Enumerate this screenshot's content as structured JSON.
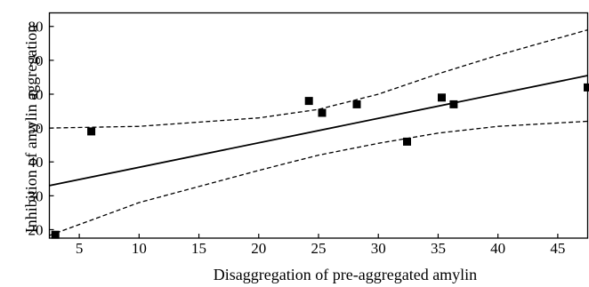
{
  "chart_data": {
    "type": "scatter",
    "title": "",
    "xlabel": "Disaggregation of pre-aggregated amylin",
    "ylabel": "Inhibition of amylin aggregation",
    "xlim": [
      2.5,
      47.5
    ],
    "ylim": [
      17.5,
      84
    ],
    "xticks": [
      5,
      10,
      15,
      20,
      25,
      30,
      35,
      40,
      45
    ],
    "yticks": [
      20,
      30,
      40,
      50,
      60,
      70,
      80
    ],
    "grid": false,
    "legend": "none",
    "series": [
      {
        "marker": "square",
        "x": [
          3,
          6,
          24.2,
          25.3,
          28.2,
          32.4,
          35.3,
          36.3,
          47.5
        ],
        "y": [
          18.5,
          49,
          58,
          54.5,
          57,
          46,
          59,
          57,
          62
        ]
      }
    ],
    "regression_line": {
      "x": [
        2.5,
        47.5
      ],
      "y": [
        33,
        65.5
      ]
    },
    "confidence_band": {
      "upper": {
        "x": [
          2.5,
          10,
          20,
          25,
          30,
          35,
          40,
          47.5
        ],
        "y": [
          50,
          50.5,
          53,
          55.5,
          60,
          66,
          71.5,
          79
        ]
      },
      "lower": {
        "x": [
          2.5,
          10,
          20,
          25,
          30,
          35,
          40,
          47.5
        ],
        "y": [
          18.3,
          28,
          37.5,
          42,
          45.5,
          48.5,
          50.5,
          52
        ]
      }
    },
    "colors": {
      "marks": "#000000",
      "background": "#ffffff"
    }
  }
}
